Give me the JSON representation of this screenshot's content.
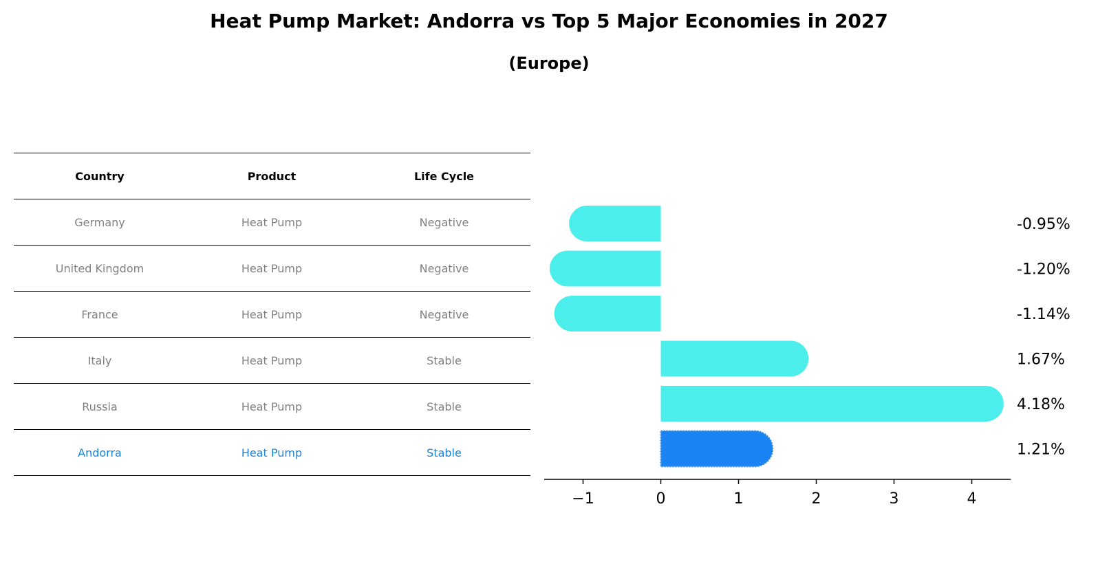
{
  "header": {
    "title": "Heat Pump Market: Andorra vs Top 5 Major Economies in 2027",
    "subtitle": "(Europe)"
  },
  "table": {
    "columns": [
      "Country",
      "Product",
      "Life Cycle"
    ],
    "rows": [
      {
        "country": "Germany",
        "product": "Heat Pump",
        "life_cycle": "Negative"
      },
      {
        "country": "United Kingdom",
        "product": "Heat Pump",
        "life_cycle": "Negative"
      },
      {
        "country": "France",
        "product": "Heat Pump",
        "life_cycle": "Negative"
      },
      {
        "country": "Italy",
        "product": "Heat Pump",
        "life_cycle": "Stable"
      },
      {
        "country": "Russia",
        "product": "Heat Pump",
        "life_cycle": "Stable"
      },
      {
        "country": "Andorra",
        "product": "Heat Pump",
        "life_cycle": "Stable",
        "highlighted": true
      }
    ]
  },
  "chart_data": {
    "type": "bar",
    "orientation": "horizontal",
    "categories": [
      "Germany",
      "United Kingdom",
      "France",
      "Italy",
      "Russia",
      "Andorra"
    ],
    "values": [
      -0.95,
      -1.2,
      -1.14,
      1.67,
      4.18,
      1.21
    ],
    "data_labels": [
      "-0.95%",
      "-1.20%",
      "-1.14%",
      "1.67%",
      "4.18%",
      "1.21%"
    ],
    "xlim": [
      -1.5,
      4.5
    ],
    "xticks": [
      -1,
      0,
      1,
      2,
      3,
      4
    ],
    "xtick_labels": [
      "−1",
      "0",
      "1",
      "2",
      "3",
      "4"
    ],
    "xlabel": "",
    "ylabel": "",
    "grid": false,
    "colors": {
      "default": "#4ceeec",
      "highlight": "#1a84f5",
      "highlight_border": "#4a90d9"
    },
    "highlight_index": 5
  }
}
